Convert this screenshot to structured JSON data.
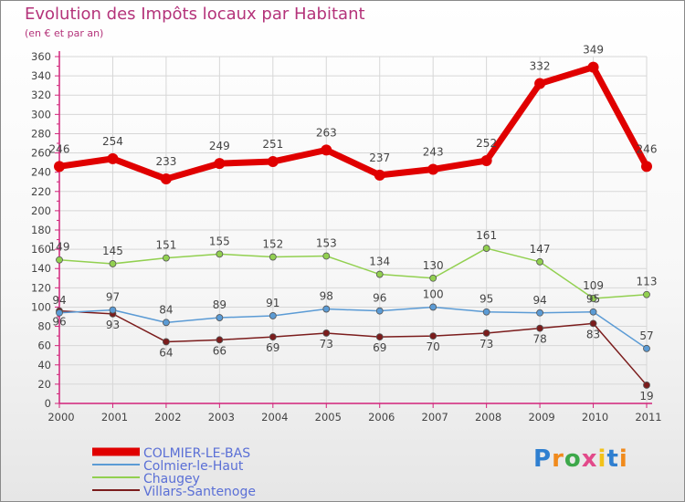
{
  "colors": {
    "title": "#b4337a",
    "axis": "#d2237a",
    "grid": "#d7d7d7",
    "text": "#444444"
  },
  "chart_data": {
    "type": "line",
    "title": "Evolution des Impôts locaux par Habitant",
    "subtitle": "(en € et par an)",
    "xlabel": "",
    "ylabel": "",
    "x": [
      "2000",
      "2001",
      "2002",
      "2003",
      "2004",
      "2005",
      "2006",
      "2007",
      "2008",
      "2009",
      "2010",
      "2011"
    ],
    "ylim": [
      0,
      360
    ],
    "yticks": [
      0,
      20,
      40,
      60,
      80,
      100,
      120,
      140,
      160,
      180,
      200,
      220,
      240,
      260,
      280,
      300,
      320,
      340,
      360
    ],
    "grid": true,
    "legend_position": "bottom-left",
    "series": [
      {
        "name": "COLMIER-LE-BAS",
        "color": "#e00000",
        "width": 7,
        "marker": 6,
        "values": [
          246,
          254,
          233,
          249,
          251,
          263,
          237,
          243,
          252,
          332,
          349,
          246
        ]
      },
      {
        "name": "Colmier-le-Haut",
        "color": "#5b9bd5",
        "width": 1.5,
        "marker": 3.5,
        "values": [
          94,
          97,
          84,
          89,
          91,
          98,
          96,
          100,
          95,
          94,
          95,
          57
        ]
      },
      {
        "name": "Chaugey",
        "color": "#92d050",
        "width": 1.5,
        "marker": 3.5,
        "values": [
          149,
          145,
          151,
          155,
          152,
          153,
          134,
          130,
          161,
          147,
          109,
          113
        ]
      },
      {
        "name": "Villars-Santenoge",
        "color": "#7b1c1c",
        "width": 1.5,
        "marker": 3.5,
        "values": [
          96,
          93,
          64,
          66,
          69,
          73,
          69,
          70,
          73,
          78,
          83,
          19
        ]
      }
    ]
  },
  "logo": {
    "p": "P",
    "r": "r",
    "o": "o",
    "x": "x",
    "i1": "i",
    "t": "t",
    "i2": "i"
  }
}
